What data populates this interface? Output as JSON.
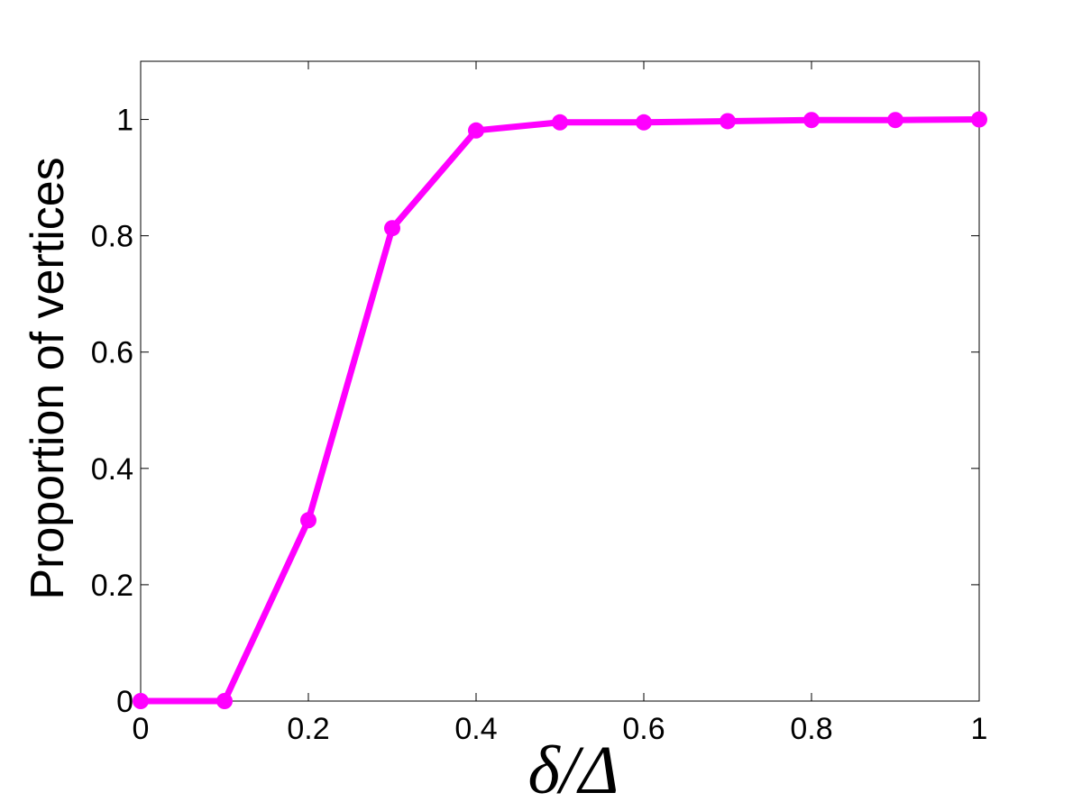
{
  "chart_data": {
    "type": "line",
    "x_label": "δ/Δ",
    "y_label": "Proportion of vertices",
    "x": [
      0,
      0.1,
      0.2,
      0.3,
      0.4,
      0.5,
      0.6,
      0.7,
      0.8,
      0.9,
      1
    ],
    "series": [
      {
        "name": "Proportion",
        "color": "#ff00ff",
        "values": [
          0,
          0,
          0.311,
          0.813,
          0.981,
          0.995,
          0.995,
          0.997,
          0.999,
          0.999,
          1.0
        ]
      }
    ],
    "xlim": [
      0,
      1
    ],
    "ylim": [
      0,
      1.1
    ],
    "xticks": [
      0,
      0.2,
      0.4,
      0.6,
      0.8,
      1
    ],
    "yticks": [
      0,
      0.2,
      0.4,
      0.6,
      0.8,
      1
    ],
    "grid": false
  }
}
